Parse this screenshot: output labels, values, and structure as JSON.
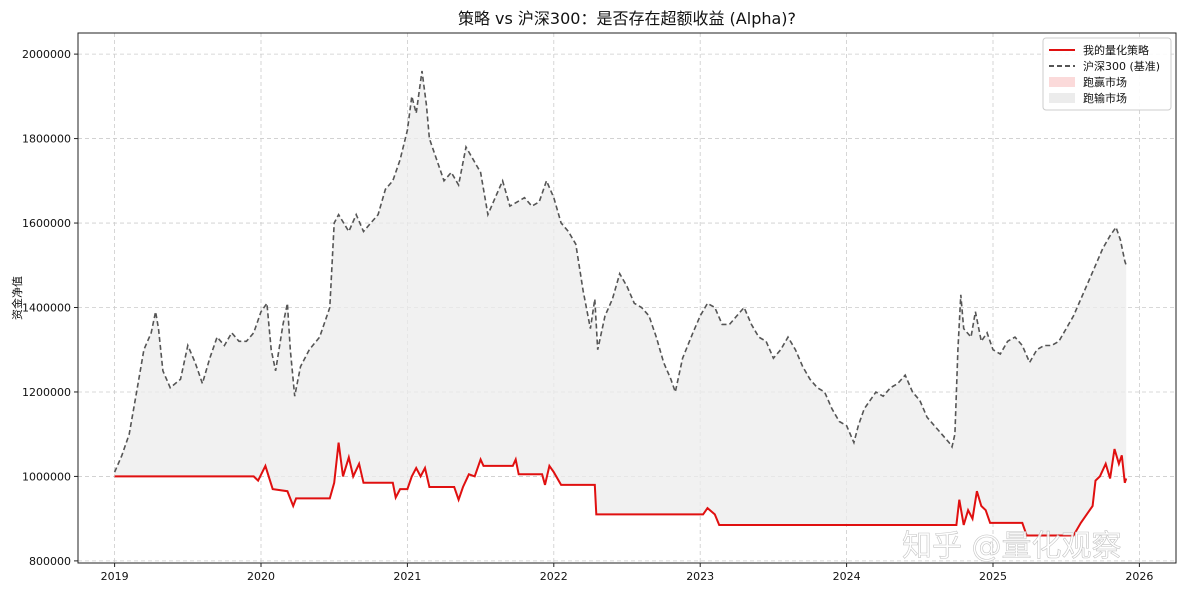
{
  "chart_data": {
    "type": "line",
    "title": "策略 vs 沪深300：是否存在超额收益 (Alpha)?",
    "xlabel": "",
    "ylabel": "资金净值",
    "xlim": [
      2018.75,
      2026.25
    ],
    "ylim": [
      795000,
      2050000
    ],
    "x_ticks": [
      2019,
      2020,
      2021,
      2022,
      2023,
      2024,
      2025,
      2026
    ],
    "x_tick_labels": [
      "2019",
      "2020",
      "2021",
      "2022",
      "2023",
      "2024",
      "2025",
      "2026"
    ],
    "y_ticks": [
      800000,
      1000000,
      1200000,
      1400000,
      1600000,
      1800000,
      2000000
    ],
    "y_tick_labels": [
      "800000",
      "1000000",
      "1200000",
      "1400000",
      "1600000",
      "1800000",
      "2000000"
    ],
    "grid": true,
    "legend_position": "top-right",
    "series": [
      {
        "name": "我的量化策略",
        "color": "#e01010",
        "style": "solid",
        "points": [
          [
            2019.0,
            1000000
          ],
          [
            2019.95,
            1000000
          ],
          [
            2019.98,
            990000
          ],
          [
            2020.03,
            1025000
          ],
          [
            2020.08,
            970000
          ],
          [
            2020.18,
            965000
          ],
          [
            2020.22,
            930000
          ],
          [
            2020.24,
            948000
          ],
          [
            2020.47,
            948000
          ],
          [
            2020.5,
            985000
          ],
          [
            2020.53,
            1080000
          ],
          [
            2020.56,
            1000000
          ],
          [
            2020.6,
            1045000
          ],
          [
            2020.63,
            1000000
          ],
          [
            2020.67,
            1030000
          ],
          [
            2020.7,
            985000
          ],
          [
            2020.9,
            985000
          ],
          [
            2020.92,
            950000
          ],
          [
            2020.95,
            970000
          ],
          [
            2021.0,
            970000
          ],
          [
            2021.03,
            1000000
          ],
          [
            2021.06,
            1020000
          ],
          [
            2021.09,
            1000000
          ],
          [
            2021.12,
            1020000
          ],
          [
            2021.15,
            975000
          ],
          [
            2021.32,
            975000
          ],
          [
            2021.35,
            945000
          ],
          [
            2021.38,
            975000
          ],
          [
            2021.42,
            1005000
          ],
          [
            2021.46,
            1000000
          ],
          [
            2021.5,
            1040000
          ],
          [
            2021.52,
            1025000
          ],
          [
            2021.72,
            1025000
          ],
          [
            2021.74,
            1040000
          ],
          [
            2021.76,
            1005000
          ],
          [
            2021.92,
            1005000
          ],
          [
            2021.94,
            980000
          ],
          [
            2021.97,
            1025000
          ],
          [
            2022.0,
            1010000
          ],
          [
            2022.05,
            980000
          ],
          [
            2022.28,
            980000
          ],
          [
            2022.29,
            910000
          ],
          [
            2023.02,
            910000
          ],
          [
            2023.05,
            925000
          ],
          [
            2023.1,
            910000
          ],
          [
            2023.13,
            885000
          ],
          [
            2024.75,
            885000
          ],
          [
            2024.77,
            945000
          ],
          [
            2024.8,
            885000
          ],
          [
            2024.83,
            920000
          ],
          [
            2024.86,
            900000
          ],
          [
            2024.89,
            965000
          ],
          [
            2024.92,
            930000
          ],
          [
            2024.95,
            920000
          ],
          [
            2024.98,
            890000
          ],
          [
            2025.2,
            890000
          ],
          [
            2025.23,
            860000
          ],
          [
            2025.55,
            860000
          ],
          [
            2025.6,
            890000
          ],
          [
            2025.64,
            910000
          ],
          [
            2025.68,
            930000
          ],
          [
            2025.7,
            990000
          ],
          [
            2025.73,
            1000000
          ],
          [
            2025.77,
            1030000
          ],
          [
            2025.8,
            995000
          ],
          [
            2025.83,
            1065000
          ],
          [
            2025.86,
            1030000
          ],
          [
            2025.88,
            1050000
          ],
          [
            2025.9,
            985000
          ],
          [
            2025.91,
            995000
          ]
        ]
      },
      {
        "name": "沪深300 (基准)",
        "color": "#555555",
        "style": "dashed",
        "points": [
          [
            2019.0,
            1010000
          ],
          [
            2019.05,
            1050000
          ],
          [
            2019.1,
            1100000
          ],
          [
            2019.15,
            1200000
          ],
          [
            2019.2,
            1300000
          ],
          [
            2019.25,
            1340000
          ],
          [
            2019.28,
            1390000
          ],
          [
            2019.3,
            1350000
          ],
          [
            2019.33,
            1250000
          ],
          [
            2019.38,
            1210000
          ],
          [
            2019.45,
            1230000
          ],
          [
            2019.5,
            1310000
          ],
          [
            2019.55,
            1270000
          ],
          [
            2019.6,
            1220000
          ],
          [
            2019.65,
            1280000
          ],
          [
            2019.7,
            1330000
          ],
          [
            2019.75,
            1310000
          ],
          [
            2019.8,
            1340000
          ],
          [
            2019.85,
            1320000
          ],
          [
            2019.9,
            1320000
          ],
          [
            2019.95,
            1340000
          ],
          [
            2020.0,
            1390000
          ],
          [
            2020.04,
            1410000
          ],
          [
            2020.07,
            1300000
          ],
          [
            2020.1,
            1250000
          ],
          [
            2020.15,
            1360000
          ],
          [
            2020.18,
            1410000
          ],
          [
            2020.2,
            1300000
          ],
          [
            2020.23,
            1190000
          ],
          [
            2020.27,
            1260000
          ],
          [
            2020.33,
            1300000
          ],
          [
            2020.4,
            1330000
          ],
          [
            2020.47,
            1400000
          ],
          [
            2020.5,
            1600000
          ],
          [
            2020.53,
            1620000
          ],
          [
            2020.6,
            1580000
          ],
          [
            2020.65,
            1620000
          ],
          [
            2020.7,
            1580000
          ],
          [
            2020.75,
            1600000
          ],
          [
            2020.8,
            1620000
          ],
          [
            2020.85,
            1680000
          ],
          [
            2020.9,
            1700000
          ],
          [
            2020.95,
            1750000
          ],
          [
            2021.0,
            1820000
          ],
          [
            2021.03,
            1900000
          ],
          [
            2021.06,
            1860000
          ],
          [
            2021.1,
            1960000
          ],
          [
            2021.13,
            1880000
          ],
          [
            2021.15,
            1800000
          ],
          [
            2021.2,
            1750000
          ],
          [
            2021.25,
            1700000
          ],
          [
            2021.3,
            1720000
          ],
          [
            2021.35,
            1690000
          ],
          [
            2021.4,
            1780000
          ],
          [
            2021.45,
            1750000
          ],
          [
            2021.5,
            1720000
          ],
          [
            2021.55,
            1620000
          ],
          [
            2021.6,
            1660000
          ],
          [
            2021.65,
            1700000
          ],
          [
            2021.7,
            1640000
          ],
          [
            2021.75,
            1650000
          ],
          [
            2021.8,
            1660000
          ],
          [
            2021.85,
            1640000
          ],
          [
            2021.9,
            1650000
          ],
          [
            2021.95,
            1700000
          ],
          [
            2022.0,
            1660000
          ],
          [
            2022.05,
            1600000
          ],
          [
            2022.1,
            1580000
          ],
          [
            2022.15,
            1550000
          ],
          [
            2022.2,
            1440000
          ],
          [
            2022.25,
            1350000
          ],
          [
            2022.28,
            1420000
          ],
          [
            2022.3,
            1300000
          ],
          [
            2022.35,
            1380000
          ],
          [
            2022.4,
            1420000
          ],
          [
            2022.45,
            1480000
          ],
          [
            2022.5,
            1450000
          ],
          [
            2022.55,
            1410000
          ],
          [
            2022.6,
            1400000
          ],
          [
            2022.65,
            1380000
          ],
          [
            2022.7,
            1330000
          ],
          [
            2022.75,
            1270000
          ],
          [
            2022.8,
            1230000
          ],
          [
            2022.83,
            1200000
          ],
          [
            2022.88,
            1280000
          ],
          [
            2022.95,
            1340000
          ],
          [
            2023.0,
            1380000
          ],
          [
            2023.05,
            1410000
          ],
          [
            2023.1,
            1400000
          ],
          [
            2023.15,
            1360000
          ],
          [
            2023.2,
            1360000
          ],
          [
            2023.25,
            1380000
          ],
          [
            2023.3,
            1400000
          ],
          [
            2023.35,
            1360000
          ],
          [
            2023.4,
            1330000
          ],
          [
            2023.45,
            1320000
          ],
          [
            2023.5,
            1280000
          ],
          [
            2023.55,
            1300000
          ],
          [
            2023.6,
            1330000
          ],
          [
            2023.65,
            1300000
          ],
          [
            2023.7,
            1260000
          ],
          [
            2023.75,
            1230000
          ],
          [
            2023.8,
            1210000
          ],
          [
            2023.85,
            1200000
          ],
          [
            2023.9,
            1160000
          ],
          [
            2023.95,
            1130000
          ],
          [
            2024.0,
            1120000
          ],
          [
            2024.05,
            1080000
          ],
          [
            2024.08,
            1120000
          ],
          [
            2024.12,
            1160000
          ],
          [
            2024.2,
            1200000
          ],
          [
            2024.25,
            1190000
          ],
          [
            2024.3,
            1210000
          ],
          [
            2024.35,
            1220000
          ],
          [
            2024.4,
            1240000
          ],
          [
            2024.45,
            1200000
          ],
          [
            2024.5,
            1180000
          ],
          [
            2024.55,
            1140000
          ],
          [
            2024.6,
            1120000
          ],
          [
            2024.65,
            1100000
          ],
          [
            2024.7,
            1080000
          ],
          [
            2024.72,
            1070000
          ],
          [
            2024.74,
            1100000
          ],
          [
            2024.76,
            1300000
          ],
          [
            2024.78,
            1430000
          ],
          [
            2024.8,
            1350000
          ],
          [
            2024.85,
            1330000
          ],
          [
            2024.88,
            1390000
          ],
          [
            2024.92,
            1320000
          ],
          [
            2024.96,
            1340000
          ],
          [
            2025.0,
            1300000
          ],
          [
            2025.05,
            1290000
          ],
          [
            2025.1,
            1320000
          ],
          [
            2025.15,
            1330000
          ],
          [
            2025.2,
            1310000
          ],
          [
            2025.25,
            1270000
          ],
          [
            2025.3,
            1300000
          ],
          [
            2025.35,
            1310000
          ],
          [
            2025.4,
            1310000
          ],
          [
            2025.45,
            1320000
          ],
          [
            2025.5,
            1350000
          ],
          [
            2025.55,
            1380000
          ],
          [
            2025.6,
            1420000
          ],
          [
            2025.65,
            1460000
          ],
          [
            2025.7,
            1500000
          ],
          [
            2025.75,
            1540000
          ],
          [
            2025.8,
            1570000
          ],
          [
            2025.84,
            1590000
          ],
          [
            2025.87,
            1560000
          ],
          [
            2025.9,
            1510000
          ],
          [
            2025.91,
            1500000
          ]
        ]
      }
    ],
    "fill_legend": [
      {
        "name": "跑赢市场",
        "color": "#fbdada"
      },
      {
        "name": "跑输市场",
        "color": "#ececec"
      }
    ]
  },
  "watermark": "知乎 @量化观察"
}
